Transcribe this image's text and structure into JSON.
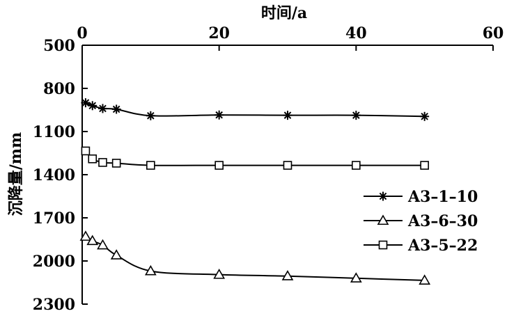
{
  "chart_data": {
    "type": "line",
    "title": "",
    "xlabel": "时间/a",
    "ylabel": "沉降量/mm",
    "xlim": [
      0,
      60
    ],
    "ylim": [
      500,
      2300
    ],
    "y_inverted": true,
    "x_axis_position": "top",
    "xticks": [
      0,
      20,
      40,
      60
    ],
    "yticks": [
      500,
      800,
      1100,
      1400,
      1700,
      2000,
      2300
    ],
    "legend_position": "right",
    "grid": false,
    "series": [
      {
        "name": "A3–1–10",
        "marker": "star",
        "x": [
          0.5,
          1.5,
          3,
          5,
          10,
          20,
          30,
          40,
          50
        ],
        "y": [
          900,
          920,
          940,
          945,
          990,
          985,
          987,
          987,
          995
        ]
      },
      {
        "name": "A3–6–30",
        "marker": "triangle",
        "x": [
          0.5,
          1.5,
          3,
          5,
          10,
          20,
          30,
          40,
          50
        ],
        "y": [
          1830,
          1860,
          1890,
          1960,
          2070,
          2095,
          2105,
          2120,
          2135
        ]
      },
      {
        "name": "A3–5–22",
        "marker": "square",
        "x": [
          0.5,
          1.5,
          3,
          5,
          10,
          20,
          30,
          40,
          50
        ],
        "y": [
          1235,
          1290,
          1315,
          1320,
          1335,
          1335,
          1335,
          1335,
          1335
        ]
      }
    ],
    "legend_order": [
      0,
      1,
      2
    ]
  }
}
